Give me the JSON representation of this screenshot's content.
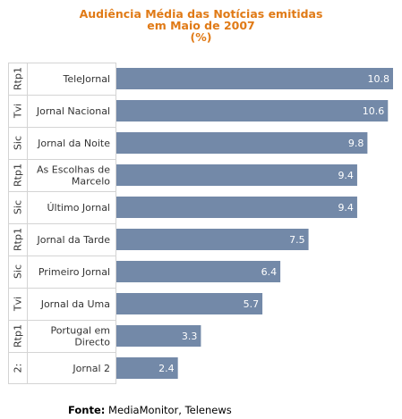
{
  "chart_data": {
    "type": "bar",
    "orientation": "horizontal",
    "title": [
      "Audiência Média das Notícias emitidas",
      "em Maio de 2007",
      "(%)"
    ],
    "xlim": [
      0,
      10.8
    ],
    "categories": [
      {
        "group": "Rtp1",
        "label": [
          "TeleJornal"
        ]
      },
      {
        "group": "Tvi",
        "label": [
          "Jornal Nacional"
        ]
      },
      {
        "group": "Sic",
        "label": [
          "Jornal da Noite"
        ]
      },
      {
        "group": "Rtp1",
        "label": [
          "As Escolhas de",
          "Marcelo"
        ]
      },
      {
        "group": "Sic",
        "label": [
          "Último Jornal"
        ]
      },
      {
        "group": "Rtp1",
        "label": [
          "Jornal da Tarde"
        ]
      },
      {
        "group": "Sic",
        "label": [
          "Primeiro Jornal"
        ]
      },
      {
        "group": "Tvi",
        "label": [
          "Jornal da Uma"
        ]
      },
      {
        "group": "Rtp1",
        "label": [
          "Portugal em",
          "Directo"
        ]
      },
      {
        "group": "2:",
        "label": [
          "Jornal 2"
        ]
      }
    ],
    "values": [
      10.8,
      10.6,
      9.8,
      9.4,
      9.4,
      7.5,
      6.4,
      5.7,
      3.3,
      2.4
    ],
    "value_labels": [
      "10.8",
      "10.6",
      "9.8",
      "9.4",
      "9.4",
      "7.5",
      "6.4",
      "5.7",
      "3.3",
      "2.4"
    ],
    "colors": {
      "bar": "#7389a8",
      "title": "#e07a16",
      "grid": "#d4d4d4",
      "label_text": "#333333",
      "value_text": "#ffffff"
    }
  },
  "source": {
    "label": "Fonte:",
    "text": " MediaMonitor, Telenews"
  }
}
